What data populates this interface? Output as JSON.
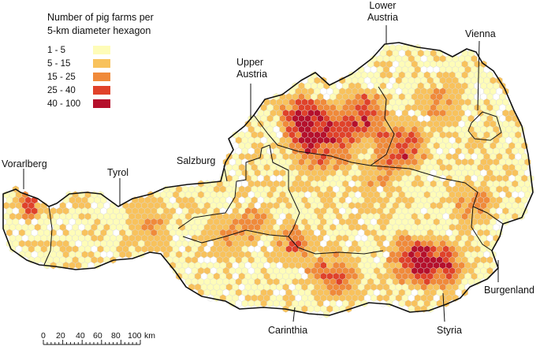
{
  "legend": {
    "title_line1": "Number of pig farms per",
    "title_line2": "5-km diameter hexagon",
    "classes": [
      {
        "label": "1 - 5",
        "color": "#fefcb8"
      },
      {
        "label": "5 - 15",
        "color": "#f8c25c"
      },
      {
        "label": "15 - 25",
        "color": "#f08a3a"
      },
      {
        "label": "25 - 40",
        "color": "#e0422a"
      },
      {
        "label": "40 - 100",
        "color": "#b5102c"
      }
    ],
    "no_farms_color": "#ffffff"
  },
  "regions": {
    "vorarlberg": "Vorarlberg",
    "tyrol": "Tyrol",
    "salzburg": "Salzburg",
    "upper_austria_1": "Upper",
    "upper_austria_2": "Austria",
    "lower_austria_1": "Lower",
    "lower_austria_2": "Austria",
    "vienna": "Vienna",
    "burgenland": "Burgenland",
    "styria": "Styria",
    "carinthia": "Carinthia"
  },
  "scale_bar": {
    "ticks": [
      "0",
      "20",
      "40",
      "60",
      "80",
      "100"
    ],
    "unit": "km"
  },
  "map_style": {
    "hexagon_shape": "hexagon",
    "border_color": "#111111",
    "hex_outline_color": "#d9d9d9"
  }
}
